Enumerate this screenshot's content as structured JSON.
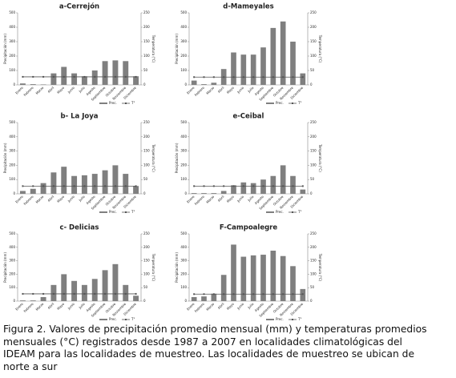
{
  "chart_data": [
    {
      "type": "bar-line",
      "title": "a-Cerrejón",
      "y_label": "Precipitación (mm)",
      "y2_label": "Temperatura (°C)",
      "categories": [
        "Enero",
        "Febrero",
        "Marzo",
        "Abril",
        "Mayo",
        "Junio",
        "Julio",
        "Agosto",
        "Septiembre",
        "Octubre",
        "Noviembre",
        "Diciembre"
      ],
      "series": [
        {
          "name": "Prec.",
          "color": "#7f7f7f",
          "values": [
            10,
            5,
            3,
            80,
            125,
            80,
            60,
            100,
            165,
            170,
            165,
            60
          ]
        },
        {
          "name": "T°",
          "color": "#555555",
          "axis": "y2",
          "values": [
            28,
            28,
            28,
            28,
            28,
            28,
            28,
            28,
            28,
            28,
            28,
            28
          ]
        }
      ],
      "ylim": [
        0,
        500
      ],
      "yticks": [
        0,
        100,
        200,
        300,
        400,
        500
      ],
      "y2lim": [
        0,
        250
      ],
      "y2ticks": [
        0,
        50,
        100,
        150,
        200,
        250
      ]
    },
    {
      "type": "bar-line",
      "title": "d-Mameyales",
      "y_label": "Precipitación (mm)",
      "y2_label": "Temperatura (°C)",
      "categories": [
        "Enero",
        "Febrero",
        "Marzo",
        "Abril",
        "Mayo",
        "Junio",
        "Julio",
        "Agosto",
        "Septiembre",
        "Octubre",
        "Noviembre",
        "Diciembre"
      ],
      "series": [
        {
          "name": "Prec.",
          "color": "#7f7f7f",
          "values": [
            30,
            5,
            15,
            110,
            225,
            210,
            210,
            260,
            395,
            440,
            300,
            80
          ]
        },
        {
          "name": "T°",
          "color": "#555555",
          "axis": "y2",
          "values": [
            27,
            27,
            27,
            27,
            27,
            27,
            27,
            27,
            27,
            27,
            27,
            27
          ]
        }
      ],
      "ylim": [
        0,
        500
      ],
      "yticks": [
        0,
        100,
        200,
        300,
        400,
        500
      ],
      "y2lim": [
        0,
        250
      ],
      "y2ticks": [
        0,
        50,
        100,
        150,
        200,
        250
      ]
    },
    {
      "type": "bar-line",
      "title": "b- La Joya",
      "y_label": "Precipitación (mm)",
      "y2_label": "Temperatura (°C)",
      "categories": [
        "Enero",
        "Febrero",
        "Marzo",
        "Abril",
        "Mayo",
        "Junio",
        "Julio",
        "Agosto",
        "Septiembre",
        "Octubre",
        "Noviembre",
        "Diciembre"
      ],
      "series": [
        {
          "name": "Prec.",
          "color": "#7f7f7f",
          "values": [
            20,
            35,
            75,
            150,
            190,
            125,
            130,
            140,
            165,
            200,
            140,
            55
          ]
        },
        {
          "name": "T°",
          "color": "#555555",
          "axis": "y2",
          "values": [
            27,
            27,
            27,
            27,
            27,
            27,
            27,
            27,
            27,
            27,
            27,
            27
          ]
        }
      ],
      "ylim": [
        0,
        500
      ],
      "yticks": [
        0,
        100,
        200,
        300,
        400,
        500
      ],
      "y2lim": [
        0,
        250
      ],
      "y2ticks": [
        0,
        50,
        100,
        150,
        200,
        250
      ]
    },
    {
      "type": "bar-line",
      "title": "e-Ceibal",
      "y_label": "Precipitación (mm)",
      "y2_label": "Temperatura (°C)",
      "categories": [
        "Enero",
        "Febrero",
        "Marzo",
        "Abril",
        "Mayo",
        "Junio",
        "Julio",
        "Agosto",
        "Septiembre",
        "Octubre",
        "Noviembre",
        "Diciembre"
      ],
      "series": [
        {
          "name": "Prec.",
          "color": "#7f7f7f",
          "values": [
            5,
            5,
            5,
            20,
            60,
            80,
            75,
            100,
            125,
            200,
            125,
            30
          ]
        },
        {
          "name": "T°",
          "color": "#555555",
          "axis": "y2",
          "values": [
            27,
            27,
            27,
            27,
            27,
            27,
            27,
            27,
            27,
            27,
            27,
            27
          ]
        }
      ],
      "ylim": [
        0,
        500
      ],
      "yticks": [
        0,
        100,
        200,
        300,
        400,
        500
      ],
      "y2lim": [
        0,
        250
      ],
      "y2ticks": [
        0,
        50,
        100,
        150,
        200,
        250
      ]
    },
    {
      "type": "bar-line",
      "title": "c- Delicias",
      "y_label": "Precipitación (mm)",
      "y2_label": "Temperatura (°C)",
      "categories": [
        "Enero",
        "Febrero",
        "Marzo",
        "Abril",
        "Mayo",
        "Junio",
        "Julio",
        "Agosto",
        "Septiembre",
        "Octubre",
        "Noviembre",
        "Diciembre"
      ],
      "series": [
        {
          "name": "Prec.",
          "color": "#7f7f7f",
          "values": [
            5,
            5,
            30,
            120,
            200,
            150,
            120,
            165,
            230,
            275,
            120,
            40
          ]
        },
        {
          "name": "T°",
          "color": "#555555",
          "axis": "y2",
          "values": [
            27,
            27,
            27,
            27,
            27,
            27,
            27,
            27,
            27,
            27,
            27,
            27
          ]
        }
      ],
      "ylim": [
        0,
        500
      ],
      "yticks": [
        0,
        100,
        200,
        300,
        400,
        500
      ],
      "y2lim": [
        0,
        250
      ],
      "y2ticks": [
        0,
        50,
        100,
        150,
        200,
        250
      ]
    },
    {
      "type": "bar-line",
      "title": "F-Campoalegre",
      "y_label": "Precipitación (mm)",
      "y2_label": "Temperatura (°C)",
      "categories": [
        "Enero",
        "Febrero",
        "Marzo",
        "Abril",
        "Mayo",
        "Junio",
        "Julio",
        "Agosto",
        "Septiembre",
        "Octubre",
        "Noviembre",
        "Diciembre"
      ],
      "series": [
        {
          "name": "Prec.",
          "color": "#7f7f7f",
          "values": [
            30,
            35,
            55,
            195,
            420,
            330,
            340,
            345,
            375,
            335,
            260,
            90
          ]
        },
        {
          "name": "T°",
          "color": "#555555",
          "axis": "y2",
          "values": [
            26,
            26,
            26,
            26,
            26,
            26,
            26,
            26,
            26,
            26,
            26,
            26
          ]
        }
      ],
      "ylim": [
        0,
        500
      ],
      "yticks": [
        0,
        100,
        200,
        300,
        400,
        500
      ],
      "y2lim": [
        0,
        250
      ],
      "y2ticks": [
        0,
        50,
        100,
        150,
        200,
        250
      ]
    }
  ],
  "caption": {
    "lines": [
      "Figura 2. Valores de precipitación promedio mensual (mm) y temperaturas promedios",
      "mensuales (°C) registrados desde 1987 a 2007 en localidades climatológicas del",
      "IDEAM para las  localidades de muestreo. Las localidades de muestreo se ubican de",
      "norte a sur"
    ]
  }
}
